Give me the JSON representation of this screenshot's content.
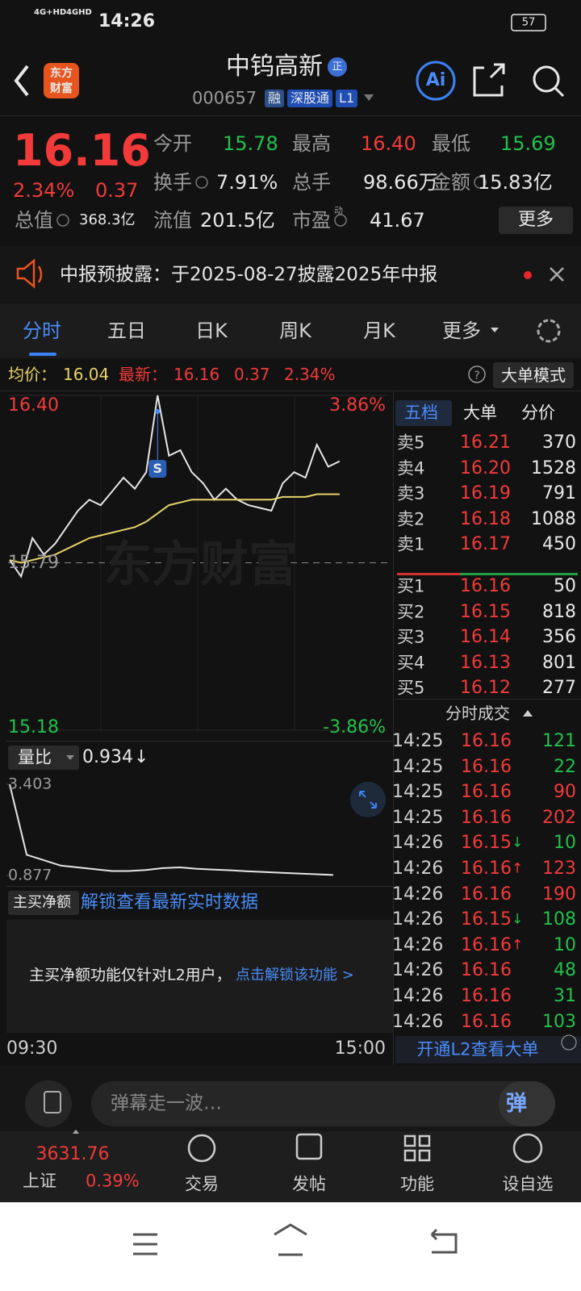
{
  "status_bar": {
    "network1": "4G+HD",
    "network2": "4GHD",
    "time": "14:26",
    "battery": "57"
  },
  "header": {
    "logo": [
      "东方",
      "财富"
    ],
    "title": "中钨高新",
    "badge": "正",
    "code": "000657",
    "tags": [
      "融",
      "深股通",
      "L1"
    ],
    "ai": "Ai"
  },
  "quote": {
    "price": "16.16",
    "change_pct": "2.34%",
    "change": "0.37",
    "stats": [
      [
        {
          "label": "今开",
          "value": "15.78",
          "tone": "down"
        },
        {
          "label": "最高",
          "value": "16.40",
          "tone": "up"
        },
        {
          "label": "最低",
          "value": "15.69",
          "tone": "down"
        }
      ],
      [
        {
          "label": "换手",
          "value": "7.91%",
          "tone": "flat"
        },
        {
          "label": "总手",
          "value": "98.66万",
          "tone": "flat"
        },
        {
          "label": "金额",
          "value": "15.83亿",
          "tone": "flat"
        }
      ],
      [
        {
          "label": "总值",
          "value": "368.3亿",
          "tone": "flat"
        },
        {
          "label": "流值",
          "value": "201.5亿",
          "tone": "flat"
        },
        {
          "label": "市盈",
          "sup": "动",
          "value": "41.67",
          "tone": "flat"
        }
      ]
    ],
    "more": "更多"
  },
  "notice": "中报预披露：于2025-08-27披露2025年中报",
  "tabs": [
    "分时",
    "五日",
    "日K",
    "周K",
    "月K",
    "更多"
  ],
  "info": {
    "avg_label": "均价：",
    "avg": "16.04",
    "last_label": "最新：",
    "last": "16.16",
    "change": "0.37",
    "pct": "2.34%",
    "button": "大单模式"
  },
  "chart_data": [
    {
      "type": "line",
      "ylim": [
        15.18,
        16.4
      ],
      "yticks": [
        15.18,
        15.79,
        {
          "value": 16.4,
          "label": "16.40"
        }
      ],
      "pct_labels": [
        "3.86%",
        "-3.86%"
      ],
      "grid": true,
      "watermark": "东方财富",
      "marker": "S",
      "series": [
        {
          "color": "#e6e6e6",
          "values": [
            15.8,
            15.74,
            15.88,
            15.82,
            15.86,
            15.92,
            15.98,
            16.02,
            16.0,
            16.05,
            16.1,
            16.06,
            16.12,
            16.4,
            16.18,
            16.2,
            16.12,
            16.08,
            16.02,
            16.06,
            16.02,
            16.0,
            15.99,
            15.98,
            16.08,
            16.12,
            16.1,
            16.22,
            16.14,
            16.16
          ]
        },
        {
          "color": "#e8d26a",
          "values": [
            15.8,
            15.79,
            15.8,
            15.81,
            15.82,
            15.84,
            15.86,
            15.88,
            15.89,
            15.9,
            15.91,
            15.92,
            15.94,
            15.97,
            16.0,
            16.01,
            16.02,
            16.02,
            16.02,
            16.02,
            16.02,
            16.02,
            16.02,
            16.02,
            16.03,
            16.03,
            16.03,
            16.04,
            16.04,
            16.04
          ]
        }
      ],
      "x_labels": [
        "09:30",
        "15:00"
      ]
    },
    {
      "type": "line",
      "label": "量比",
      "value": "0.934",
      "arrow": "↓",
      "ylim": [
        0.877,
        3.403
      ],
      "yticks": [
        0.877,
        3.403
      ],
      "series": [
        {
          "color": "#e6e6e6",
          "values": [
            3.4,
            1.45,
            1.3,
            1.15,
            1.1,
            1.05,
            1.0,
            1.0,
            1.03,
            1.08,
            1.1,
            1.06,
            1.04,
            1.02,
            0.99,
            0.97,
            0.95,
            0.93,
            0.91,
            0.89
          ]
        }
      ]
    }
  ],
  "net_buy": {
    "dropdown": "主买净额",
    "link": "解锁查看最新实时数据",
    "notice": "主买净额功能仅针对L2用户，",
    "action": "点击解锁该功能 >"
  },
  "order_book": {
    "tabs": [
      "五档",
      "大单",
      "分价"
    ],
    "asks": [
      {
        "label": "卖5",
        "price": "16.21",
        "volume": "370"
      },
      {
        "label": "卖4",
        "price": "16.20",
        "volume": "1528"
      },
      {
        "label": "卖3",
        "price": "16.19",
        "volume": "791"
      },
      {
        "label": "卖2",
        "price": "16.18",
        "volume": "1088"
      },
      {
        "label": "卖1",
        "price": "16.17",
        "volume": "450"
      }
    ],
    "bids": [
      {
        "label": "买1",
        "price": "16.16",
        "volume": "50"
      },
      {
        "label": "买2",
        "price": "16.15",
        "volume": "818"
      },
      {
        "label": "买3",
        "price": "16.14",
        "volume": "356"
      },
      {
        "label": "买4",
        "price": "16.13",
        "volume": "801"
      },
      {
        "label": "买5",
        "price": "16.12",
        "volume": "277"
      }
    ]
  },
  "trades": {
    "title": "分时成交",
    "rows": [
      {
        "time": "14:25",
        "price": "16.16",
        "volume": "121",
        "side": "sell"
      },
      {
        "time": "14:25",
        "price": "16.16",
        "volume": "22",
        "side": "sell"
      },
      {
        "time": "14:25",
        "price": "16.16",
        "volume": "90",
        "side": "buy"
      },
      {
        "time": "14:25",
        "price": "16.16",
        "volume": "202",
        "side": "buy"
      },
      {
        "time": "14:26",
        "price": "16.15",
        "arrow": "↓",
        "volume": "10",
        "side": "sell"
      },
      {
        "time": "14:26",
        "price": "16.16",
        "arrow": "↑",
        "volume": "123",
        "side": "buy"
      },
      {
        "time": "14:26",
        "price": "16.16",
        "volume": "190",
        "side": "buy"
      },
      {
        "time": "14:26",
        "price": "16.15",
        "arrow": "↓",
        "volume": "108",
        "side": "sell"
      },
      {
        "time": "14:26",
        "price": "16.16",
        "arrow": "↑",
        "volume": "10",
        "side": "sell"
      },
      {
        "time": "14:26",
        "price": "16.16",
        "volume": "48",
        "side": "sell"
      },
      {
        "time": "14:26",
        "price": "16.16",
        "volume": "31",
        "side": "sell"
      },
      {
        "time": "14:26",
        "price": "16.16",
        "volume": "103",
        "side": "sell"
      }
    ],
    "banner": "开通L2查看大单"
  },
  "comment": {
    "placeholder": "弹幕走一波…",
    "button": "弹"
  },
  "nav": {
    "index": {
      "value": "3631.76",
      "name": "上证",
      "pct": "0.39%"
    },
    "items": [
      "交易",
      "发帖",
      "功能",
      "设自选"
    ]
  }
}
